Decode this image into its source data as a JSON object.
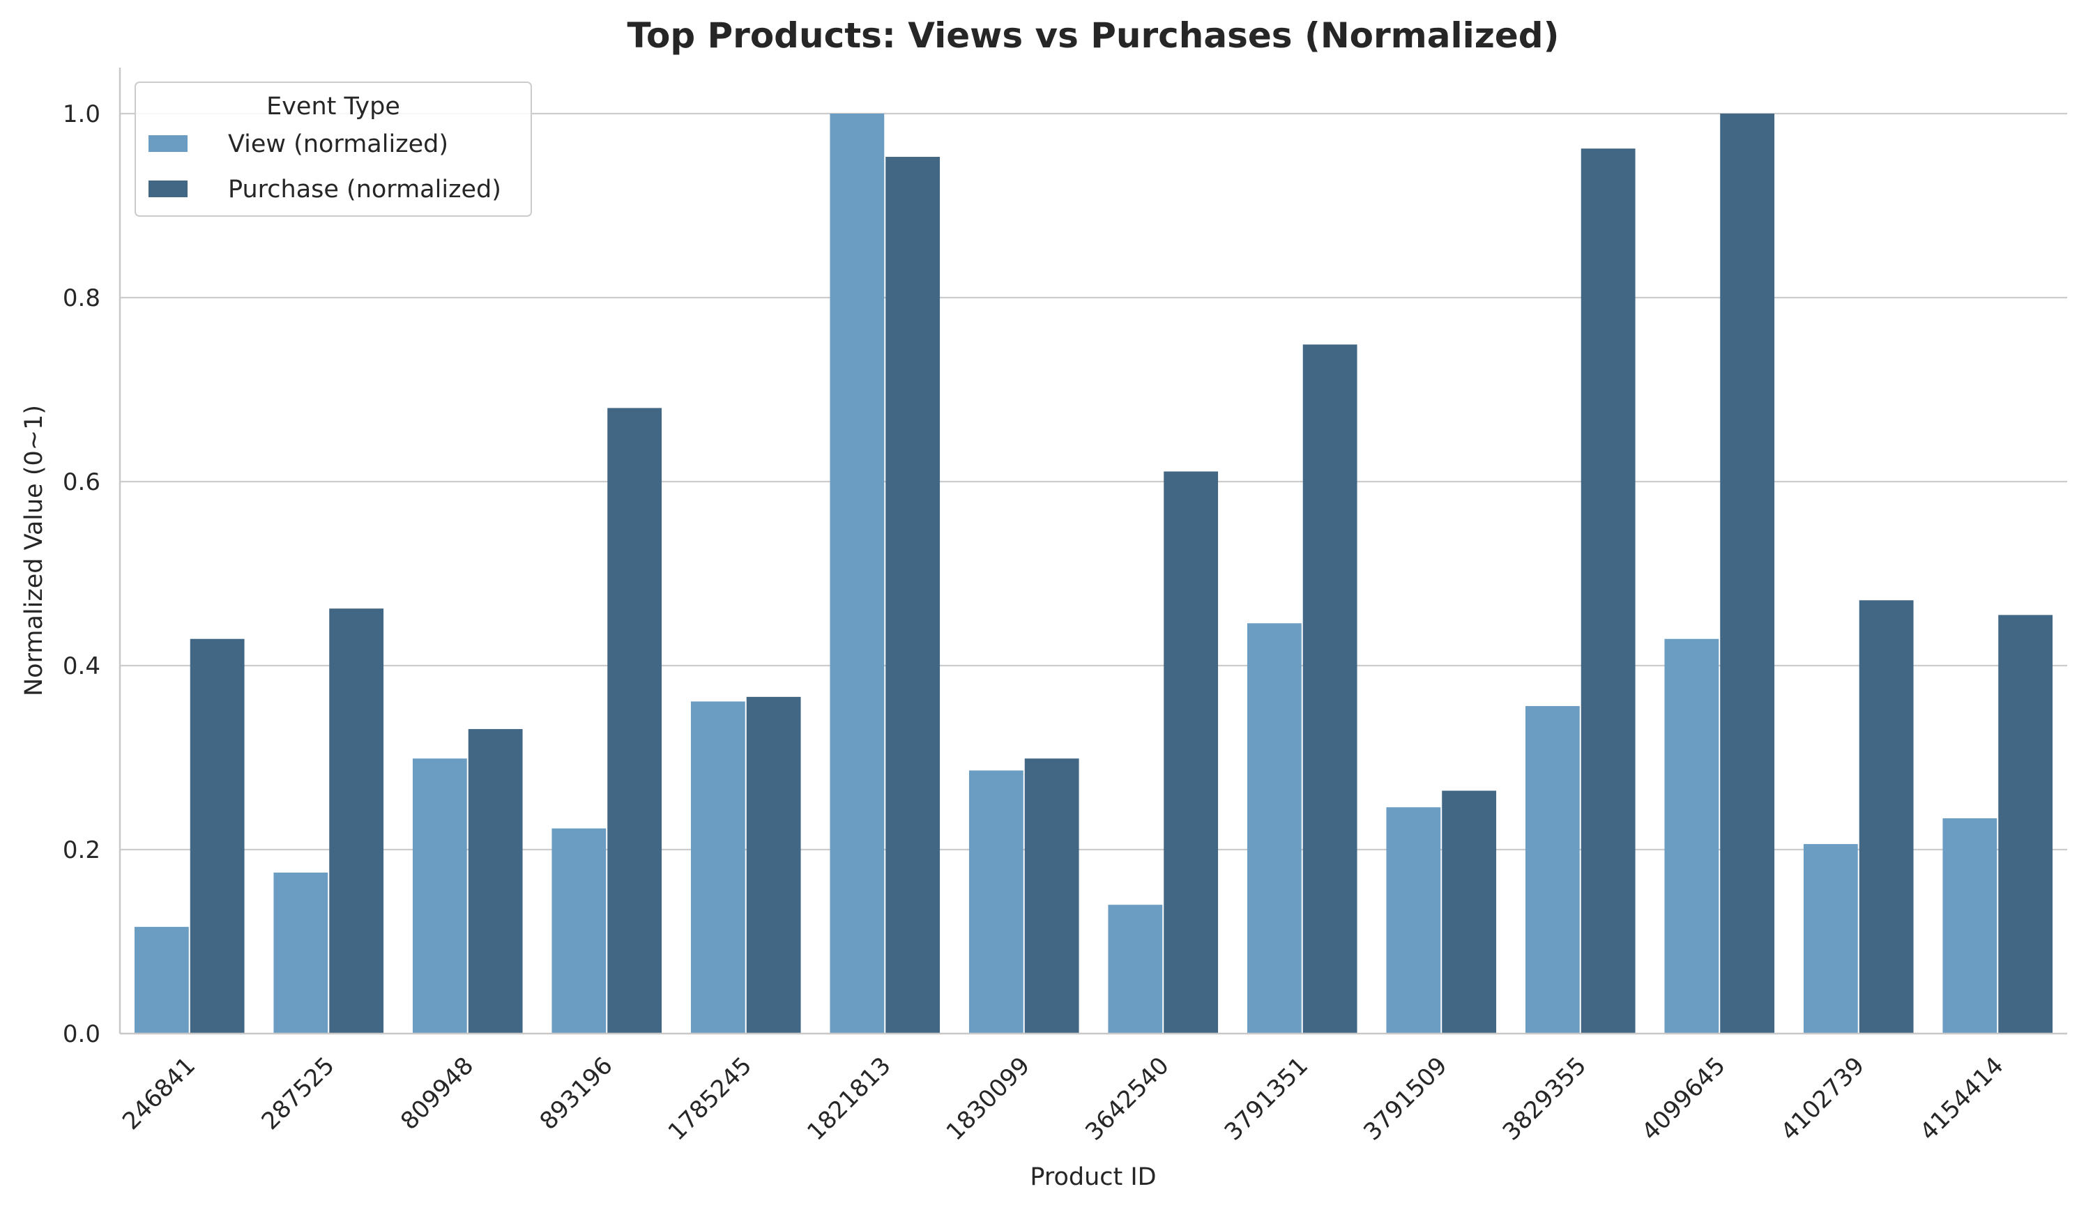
{
  "chart_data": {
    "type": "bar",
    "title": "Top Products: Views vs Purchases (Normalized)",
    "xlabel": "Product ID",
    "ylabel": "Normalized Value (0~1)",
    "ylim": [
      0,
      1.05
    ],
    "yticks": [
      "0.0",
      "0.2",
      "0.4",
      "0.6",
      "0.8",
      "1.0"
    ],
    "grid": "horizontal",
    "legend_title": "Event Type",
    "legend_position": "top-left",
    "categories": [
      "246841",
      "287525",
      "809948",
      "893196",
      "1785245",
      "1821813",
      "1830099",
      "3642540",
      "3791351",
      "3791509",
      "3829355",
      "4099645",
      "4102739",
      "4154414"
    ],
    "series": [
      {
        "name": "View (normalized)",
        "color": "#6b9dc2",
        "values": [
          0.116,
          0.175,
          0.299,
          0.223,
          0.361,
          1.0,
          0.286,
          0.14,
          0.446,
          0.246,
          0.356,
          0.429,
          0.206,
          0.234
        ]
      },
      {
        "name": "Purchase (normalized)",
        "color": "#416784",
        "values": [
          0.429,
          0.462,
          0.331,
          0.68,
          0.366,
          0.953,
          0.299,
          0.611,
          0.749,
          0.264,
          0.962,
          1.0,
          0.471,
          0.455
        ]
      }
    ]
  }
}
